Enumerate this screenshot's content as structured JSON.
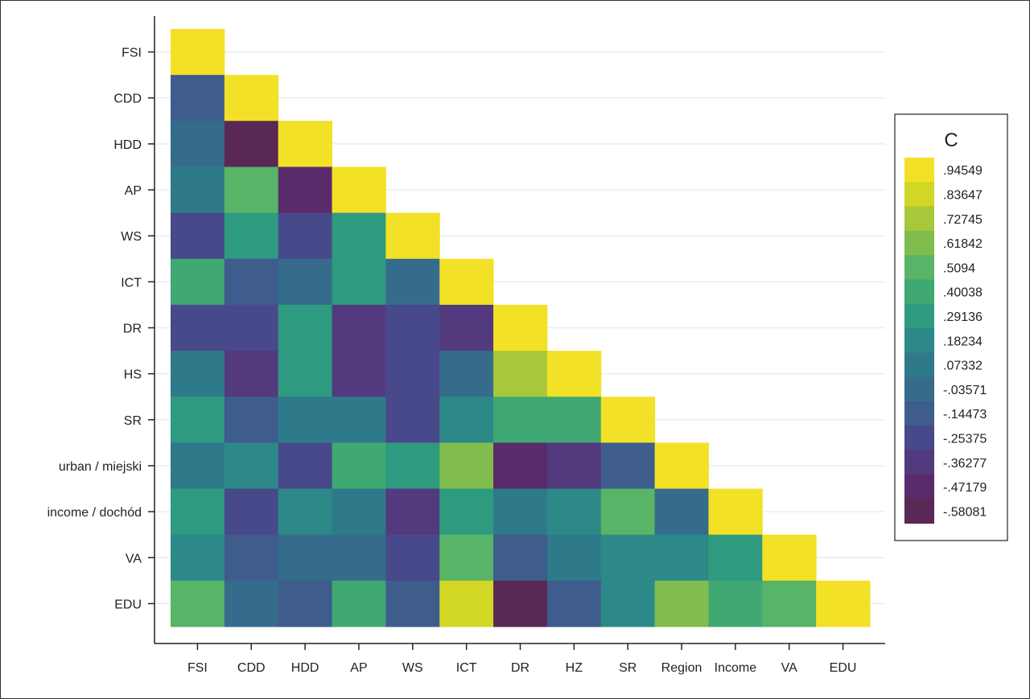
{
  "chart_data": {
    "type": "heatmap",
    "title": "",
    "row_labels": [
      "FSI",
      "CDD",
      "HDD",
      "AP",
      "WS",
      "ICT",
      "DR",
      "HS",
      "SR",
      "urban / miejski",
      "income / dochód",
      "VA",
      "EDU"
    ],
    "col_labels": [
      "FSI",
      "CDD",
      "HDD",
      "AP",
      "WS",
      "ICT",
      "DR",
      "HZ",
      "SR",
      "Region",
      "Income",
      "VA",
      "EDU"
    ],
    "values": [
      [
        0.94549
      ],
      [
        -0.14473,
        0.94549
      ],
      [
        -0.03571,
        -0.58081,
        0.94549
      ],
      [
        0.07332,
        0.5094,
        -0.47179,
        0.94549
      ],
      [
        -0.25375,
        0.29136,
        -0.25375,
        0.29136,
        0.94549
      ],
      [
        0.40038,
        -0.14473,
        -0.03571,
        0.29136,
        -0.03571,
        0.94549
      ],
      [
        -0.25375,
        -0.25375,
        0.29136,
        -0.36277,
        -0.25375,
        -0.36277,
        0.94549
      ],
      [
        0.07332,
        -0.36277,
        0.29136,
        -0.36277,
        -0.25375,
        -0.03571,
        0.72745,
        0.94549
      ],
      [
        0.29136,
        -0.14473,
        0.07332,
        0.07332,
        -0.25375,
        0.18234,
        0.40038,
        0.40038,
        0.94549
      ],
      [
        0.07332,
        0.18234,
        -0.25375,
        0.40038,
        0.29136,
        0.61842,
        -0.47179,
        -0.36277,
        -0.14473,
        0.94549
      ],
      [
        0.29136,
        -0.25375,
        0.18234,
        0.07332,
        -0.36277,
        0.29136,
        0.07332,
        0.18234,
        0.5094,
        -0.03571,
        0.94549
      ],
      [
        0.18234,
        -0.14473,
        -0.03571,
        -0.03571,
        -0.25375,
        0.5094,
        -0.14473,
        0.07332,
        0.18234,
        0.18234,
        0.29136,
        0.94549
      ],
      [
        0.5094,
        -0.03571,
        -0.14473,
        0.40038,
        -0.14473,
        0.83647,
        -0.58081,
        -0.14473,
        0.18234,
        0.61842,
        0.40038,
        0.5094,
        0.94549
      ]
    ],
    "triangle": "lower",
    "grid": true,
    "legend": {
      "title": "C",
      "placement": "right",
      "labels": [
        ".94549",
        ".83647",
        ".72745",
        ".61842",
        ".5094",
        ".40038",
        ".29136",
        ".18234",
        ".07332",
        "-.03571",
        "-.14473",
        "-.25375",
        "-.36277",
        "-.47179",
        "-.58081"
      ],
      "values": [
        0.94549,
        0.83647,
        0.72745,
        0.61842,
        0.5094,
        0.40038,
        0.29136,
        0.18234,
        0.07332,
        -0.03571,
        -0.14473,
        -0.25375,
        -0.36277,
        -0.47179,
        -0.58081
      ],
      "colors": [
        "#f2e126",
        "#d2d624",
        "#a8c73a",
        "#80bd4e",
        "#58b466",
        "#3fa873",
        "#2e9a7f",
        "#2c8987",
        "#2e7a8b",
        "#356c8c",
        "#3e5c8c",
        "#48498a",
        "#533a7e",
        "#5a2b6a",
        "#5a2854"
      ]
    }
  }
}
